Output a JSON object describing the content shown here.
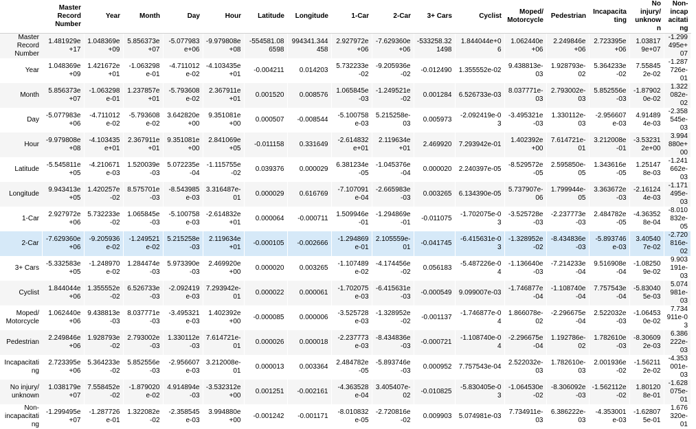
{
  "table": {
    "highlight_row": 8,
    "columns": [
      "Master Record Number",
      "Year",
      "Month",
      "Day",
      "Hour",
      "Latitude",
      "Longitude",
      "1-Car",
      "2-Car",
      "3+ Cars",
      "Cyclist",
      "Moped/ Motorcycle",
      "Pedestrian",
      "Incapacitating",
      "No injury/ unknown",
      "Non-incapacitating"
    ],
    "rows": [
      {
        "label": "Master Record Number",
        "cells": [
          "1.481929e+17",
          "1.048369e+09",
          "5.856373e+07",
          "-5.077983e+06",
          "-9.979808e+08",
          "-554581.086598",
          "994341.344458",
          "2.927972e+06",
          "-7.629360e+06",
          "-533258.321498",
          "1.844044e+06",
          "1.062440e+06",
          "2.249846e+06",
          "2.723395e+06",
          "1.038179e+07",
          "-1.299495e+07"
        ]
      },
      {
        "label": "Year",
        "cells": [
          "1.048369e+09",
          "1.421672e+01",
          "-1.063298e-01",
          "-4.711012e-02",
          "-4.103435e+01",
          "-0.004211",
          "0.014203",
          "5.732233e-02",
          "-9.205936e-02",
          "-0.012490",
          "1.355552e-02",
          "9.438813e-03",
          "1.928793e-02",
          "5.364233e-02",
          "7.558452e-02",
          "-1.287726e-01"
        ]
      },
      {
        "label": "Month",
        "cells": [
          "5.856373e+07",
          "-1.063298e-01",
          "1.237857e+01",
          "-5.793608e-02",
          "2.367911e+01",
          "0.001520",
          "0.008576",
          "1.065845e-03",
          "-1.249521e-02",
          "0.001284",
          "6.526733e-03",
          "8.037771e-03",
          "2.793002e-03",
          "5.852556e-03",
          "-1.879020e-02",
          "1.322082e-02"
        ]
      },
      {
        "label": "Day",
        "cells": [
          "-5.077983e+06",
          "-4.711012e-02",
          "-5.793608e-02",
          "3.642820e+00",
          "9.351081e+00",
          "0.000507",
          "-0.008544",
          "-5.100758e-03",
          "5.215258e-03",
          "0.005973",
          "-2.092419e-03",
          "-3.495321e-03",
          "1.330112e-03",
          "-2.956607e-03",
          "4.914894e-03",
          "-2.358545e-03"
        ]
      },
      {
        "label": "Hour",
        "cells": [
          "-9.979808e+08",
          "-4.103435e+01",
          "2.367911e+01",
          "9.351081e+00",
          "2.841069e+05",
          "-0.011158",
          "0.331649",
          "-2.614832e+01",
          "2.119634e+01",
          "2.469920",
          "7.293942e-01",
          "1.402392e+00",
          "7.614721e-01",
          "3.212008e-01",
          "-3.532312e+00",
          "3.994880e+00"
        ]
      },
      {
        "label": "Latitude",
        "cells": [
          "-5.545811e+05",
          "-4.210671e-03",
          "1.520039e-03",
          "5.072235e-04",
          "-1.115755e-02",
          "0.039376",
          "0.000029",
          "6.381234e-05",
          "-1.045376e-04",
          "0.000020",
          "2.240397e-05",
          "-8.529572e-05",
          "2.595850e-05",
          "1.343616e-05",
          "1.251478e-03",
          "-1.241662e-03"
        ]
      },
      {
        "label": "Longitude",
        "cells": [
          "9.943413e+05",
          "1.420257e-02",
          "8.575701e-03",
          "-8.543985e-03",
          "3.316487e-01",
          "0.000029",
          "0.616769",
          "-7.107091e-04",
          "-2.665983e-03",
          "0.003265",
          "6.134390e-05",
          "5.737907e-06",
          "1.799944e-05",
          "3.363672e-03",
          "-2.161244e-03",
          "-1.171495e-03"
        ]
      },
      {
        "label": "1-Car",
        "cells": [
          "2.927972e+06",
          "5.732233e-02",
          "1.065845e-03",
          "-5.100758e-03",
          "-2.614832e+01",
          "0.000064",
          "-0.000711",
          "1.509946e-01",
          "-1.294869e-01",
          "-0.011075",
          "-1.702075e-03",
          "-3.525728e-03",
          "-2.237773e-03",
          "2.484782e-05",
          "-4.363528e-04",
          "-8.010832e-05"
        ]
      },
      {
        "label": "2-Car",
        "cells": [
          "-7.629360e+06",
          "-9.205936e-02",
          "-1.249521e-02",
          "5.215258e-03",
          "2.119634e+01",
          "-0.000105",
          "-0.002666",
          "-1.294869e-01",
          "2.105559e-01",
          "-0.041745",
          "-6.415631e-03",
          "-1.328952e-02",
          "-8.434836e-03",
          "-5.893746e-03",
          "3.405407e-02",
          "-2.720816e-02"
        ]
      },
      {
        "label": "3+ Cars",
        "cells": [
          "-5.332583e+05",
          "-1.248970e-02",
          "1.284474e-03",
          "5.973390e-03",
          "2.469920e+00",
          "0.000020",
          "0.003265",
          "-1.107489e-02",
          "-4.174456e-02",
          "0.056183",
          "-5.487226e-04",
          "-1.136640e-03",
          "-7.214233e-04",
          "9.516908e-04",
          "-1.082509e-02",
          "9.903191e-03"
        ]
      },
      {
        "label": "Cyclist",
        "cells": [
          "1.844044e+06",
          "1.355552e-02",
          "6.526733e-03",
          "-2.092419e-03",
          "7.293942e-01",
          "0.000022",
          "0.000061",
          "-1.702075e-03",
          "-6.415631e-03",
          "-0.000549",
          "9.099007e-03",
          "-1.746877e-04",
          "-1.108740e-04",
          "7.757543e-04",
          "-5.830405e-03",
          "5.074981e-03"
        ]
      },
      {
        "label": "Moped/ Motorcycle",
        "cells": [
          "1.062440e+06",
          "9.438813e-03",
          "8.037771e-03",
          "-3.495321e-03",
          "1.402392e+00",
          "-0.000085",
          "0.000006",
          "-3.525728e-03",
          "-1.328952e-02",
          "-0.001137",
          "-1.746877e-04",
          "1.866078e-02",
          "-2.296675e-04",
          "2.522032e-03",
          "-1.064530e-02",
          "7.734911e-03"
        ]
      },
      {
        "label": "Pedestrian",
        "cells": [
          "2.249846e+06",
          "1.928793e-02",
          "2.793002e-03",
          "1.330112e-03",
          "7.614721e-01",
          "0.000026",
          "0.000018",
          "-2.237773e-03",
          "-8.434836e-03",
          "-0.000721",
          "-1.108740e-04",
          "-2.296675e-04",
          "1.192786e-02",
          "1.782610e-03",
          "-8.306092e-03",
          "6.386222e-03"
        ]
      },
      {
        "label": "Incapacitating",
        "cells": [
          "2.723395e+06",
          "5.364233e-02",
          "5.852556e-03",
          "-2.956607e-03",
          "3.212008e-01",
          "0.000013",
          "0.003364",
          "2.484782e-05",
          "-5.893746e-03",
          "0.000952",
          "7.757543e-04",
          "2.522032e-03",
          "1.782610e-03",
          "2.001936e-02",
          "-1.562112e-02",
          "-4.353001e-03"
        ]
      },
      {
        "label": "No injury/ unknown",
        "cells": [
          "1.038179e+07",
          "7.558452e-02",
          "-1.879020e-02",
          "4.914894e-03",
          "-3.532312e+00",
          "0.001251",
          "-0.002161",
          "-4.363528e-04",
          "3.405407e-02",
          "-0.010825",
          "-5.830405e-03",
          "-1.064530e-02",
          "-8.306092e-03",
          "-1.562112e-02",
          "1.801208e-01",
          "-1.628075e-01"
        ]
      },
      {
        "label": "Non-incapacitating",
        "cells": [
          "-1.299495e+07",
          "-1.287726e-01",
          "1.322082e-02",
          "-2.358545e-03",
          "3.994880e+00",
          "-0.001242",
          "-0.001171",
          "-8.010832e-05",
          "-2.720816e-02",
          "0.009903",
          "5.074981e-03",
          "7.734911e-03",
          "6.386222e-03",
          "-4.353001e-03",
          "-1.628075e-01",
          "1.676320e-01"
        ]
      }
    ]
  }
}
